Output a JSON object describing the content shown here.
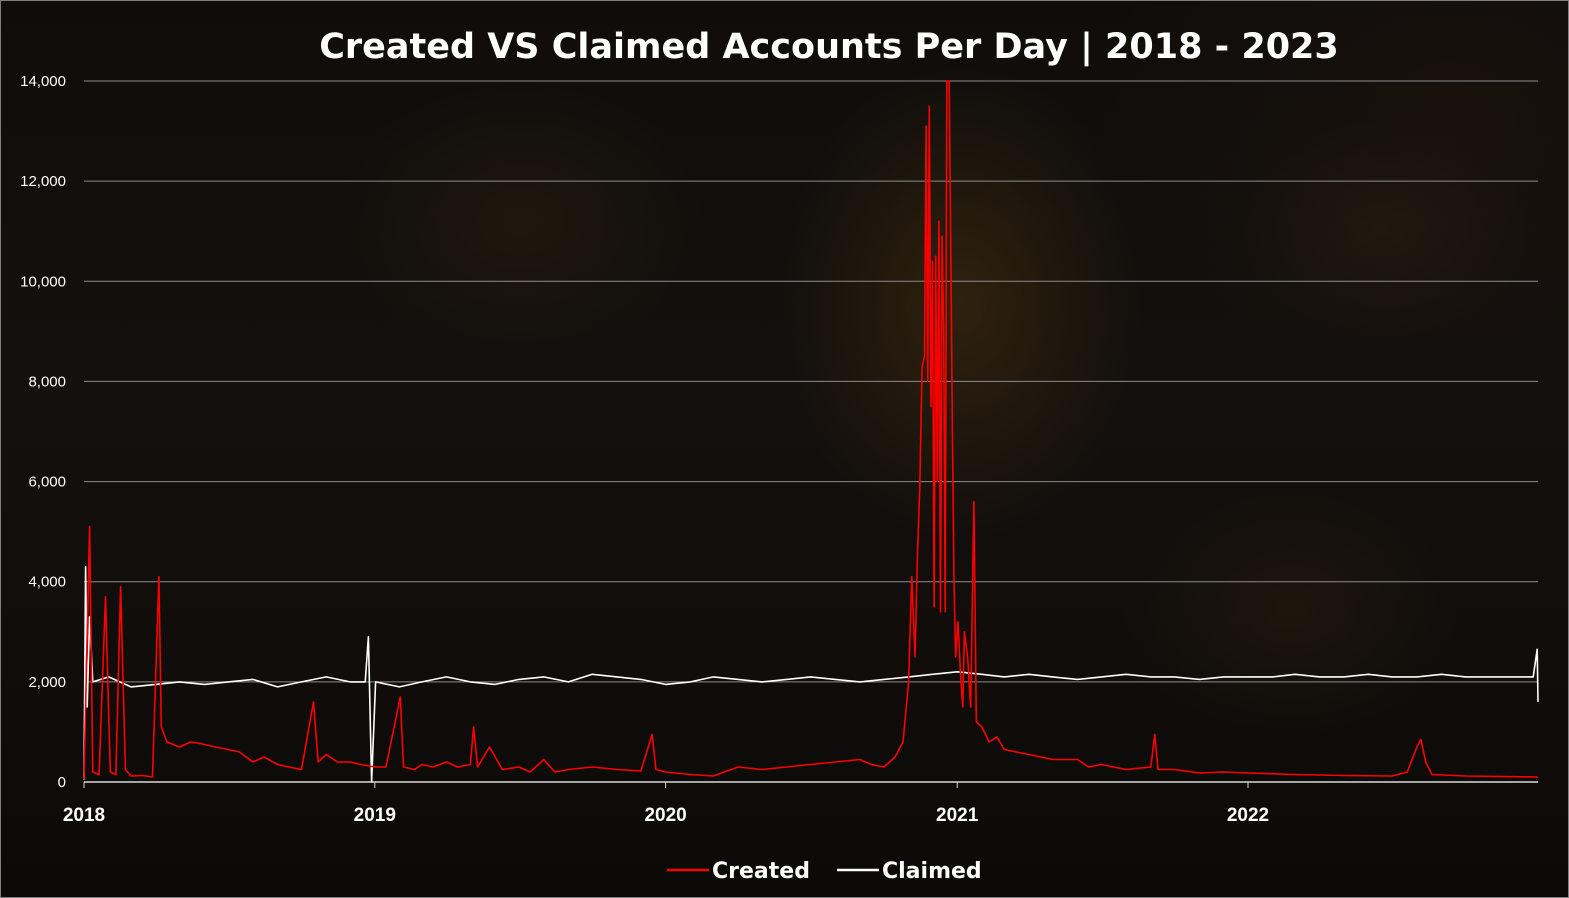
{
  "chart_data": {
    "type": "line",
    "title": "Created VS Claimed Accounts Per Day | 2018 - 2023",
    "xlabel": "",
    "ylabel": "",
    "x_range": [
      "2018-01-01",
      "2022-12-31"
    ],
    "ylim": [
      0,
      14000
    ],
    "y_ticks": [
      "0",
      "2,000",
      "4,000",
      "6,000",
      "8,000",
      "10,000",
      "12,000",
      "14,000"
    ],
    "x_ticks": [
      "2018",
      "2019",
      "2020",
      "2021",
      "2022"
    ],
    "grid": true,
    "legend": "bottom",
    "series": [
      {
        "name": "Created",
        "color": "#ff0000",
        "points": [
          [
            "2018-01-01",
            60
          ],
          [
            "2018-01-08",
            5100
          ],
          [
            "2018-01-12",
            200
          ],
          [
            "2018-01-20",
            150
          ],
          [
            "2018-01-28",
            3700
          ],
          [
            "2018-02-03",
            200
          ],
          [
            "2018-02-10",
            150
          ],
          [
            "2018-02-16",
            3900
          ],
          [
            "2018-02-22",
            250
          ],
          [
            "2018-03-01",
            120
          ],
          [
            "2018-03-15",
            130
          ],
          [
            "2018-03-28",
            100
          ],
          [
            "2018-04-05",
            4100
          ],
          [
            "2018-04-08",
            1100
          ],
          [
            "2018-04-15",
            800
          ],
          [
            "2018-05-01",
            700
          ],
          [
            "2018-05-15",
            800
          ],
          [
            "2018-06-01",
            750
          ],
          [
            "2018-06-15",
            700
          ],
          [
            "2018-07-01",
            650
          ],
          [
            "2018-07-15",
            600
          ],
          [
            "2018-08-01",
            400
          ],
          [
            "2018-08-15",
            500
          ],
          [
            "2018-09-01",
            350
          ],
          [
            "2018-09-15",
            300
          ],
          [
            "2018-10-01",
            250
          ],
          [
            "2018-10-16",
            1600
          ],
          [
            "2018-10-22",
            400
          ],
          [
            "2018-11-01",
            550
          ],
          [
            "2018-11-15",
            400
          ],
          [
            "2018-12-01",
            400
          ],
          [
            "2018-12-15",
            350
          ],
          [
            "2019-01-01",
            300
          ],
          [
            "2019-01-15",
            300
          ],
          [
            "2019-02-02",
            1700
          ],
          [
            "2019-02-06",
            300
          ],
          [
            "2019-02-20",
            250
          ],
          [
            "2019-03-01",
            350
          ],
          [
            "2019-03-15",
            300
          ],
          [
            "2019-04-01",
            400
          ],
          [
            "2019-04-15",
            300
          ],
          [
            "2019-05-01",
            350
          ],
          [
            "2019-05-05",
            1100
          ],
          [
            "2019-05-10",
            300
          ],
          [
            "2019-05-25",
            700
          ],
          [
            "2019-06-10",
            250
          ],
          [
            "2019-07-01",
            300
          ],
          [
            "2019-07-15",
            200
          ],
          [
            "2019-08-01",
            450
          ],
          [
            "2019-08-15",
            200
          ],
          [
            "2019-09-01",
            250
          ],
          [
            "2019-10-01",
            300
          ],
          [
            "2019-11-01",
            250
          ],
          [
            "2019-12-01",
            220
          ],
          [
            "2019-12-15",
            950
          ],
          [
            "2019-12-20",
            250
          ],
          [
            "2020-01-01",
            200
          ],
          [
            "2020-02-01",
            150
          ],
          [
            "2020-03-01",
            120
          ],
          [
            "2020-04-01",
            300
          ],
          [
            "2020-05-01",
            250
          ],
          [
            "2020-06-01",
            300
          ],
          [
            "2020-07-01",
            350
          ],
          [
            "2020-08-01",
            400
          ],
          [
            "2020-09-01",
            450
          ],
          [
            "2020-09-15",
            350
          ],
          [
            "2020-10-01",
            300
          ],
          [
            "2020-10-15",
            500
          ],
          [
            "2020-10-25",
            800
          ],
          [
            "2020-11-01",
            2000
          ],
          [
            "2020-11-05",
            4100
          ],
          [
            "2020-11-09",
            2500
          ],
          [
            "2020-11-12",
            4500
          ],
          [
            "2020-11-15",
            5900
          ],
          [
            "2020-11-18",
            8300
          ],
          [
            "2020-11-21",
            8500
          ],
          [
            "2020-11-23",
            13100
          ],
          [
            "2020-11-25",
            8000
          ],
          [
            "2020-11-27",
            13500
          ],
          [
            "2020-11-29",
            7500
          ],
          [
            "2020-12-01",
            10400
          ],
          [
            "2020-12-03",
            3500
          ],
          [
            "2020-12-05",
            10500
          ],
          [
            "2020-12-07",
            6000
          ],
          [
            "2020-12-09",
            11200
          ],
          [
            "2020-12-11",
            3400
          ],
          [
            "2020-12-13",
            10900
          ],
          [
            "2020-12-15",
            9000
          ],
          [
            "2020-12-17",
            3400
          ],
          [
            "2020-12-19",
            14000
          ],
          [
            "2020-12-22",
            14000
          ],
          [
            "2020-12-24",
            10600
          ],
          [
            "2020-12-26",
            7000
          ],
          [
            "2020-12-28",
            4000
          ],
          [
            "2020-12-30",
            2500
          ],
          [
            "2021-01-02",
            3200
          ],
          [
            "2021-01-05",
            2200
          ],
          [
            "2021-01-08",
            1500
          ],
          [
            "2021-01-10",
            3000
          ],
          [
            "2021-01-14",
            2500
          ],
          [
            "2021-01-18",
            1500
          ],
          [
            "2021-01-22",
            5600
          ],
          [
            "2021-01-25",
            1200
          ],
          [
            "2021-02-01",
            1100
          ],
          [
            "2021-02-10",
            800
          ],
          [
            "2021-02-20",
            900
          ],
          [
            "2021-03-01",
            650
          ],
          [
            "2021-04-01",
            550
          ],
          [
            "2021-05-01",
            450
          ],
          [
            "2021-06-01",
            450
          ],
          [
            "2021-06-15",
            300
          ],
          [
            "2021-07-01",
            350
          ],
          [
            "2021-08-01",
            250
          ],
          [
            "2021-09-01",
            300
          ],
          [
            "2021-09-06",
            950
          ],
          [
            "2021-09-10",
            250
          ],
          [
            "2021-10-01",
            250
          ],
          [
            "2021-11-01",
            180
          ],
          [
            "2021-12-01",
            200
          ],
          [
            "2022-01-01",
            180
          ],
          [
            "2022-03-01",
            150
          ],
          [
            "2022-05-01",
            130
          ],
          [
            "2022-07-01",
            120
          ],
          [
            "2022-07-20",
            200
          ],
          [
            "2022-08-01",
            700
          ],
          [
            "2022-08-06",
            850
          ],
          [
            "2022-08-12",
            400
          ],
          [
            "2022-08-20",
            150
          ],
          [
            "2022-10-01",
            120
          ],
          [
            "2022-12-31",
            100
          ]
        ]
      },
      {
        "name": "Claimed",
        "color": "#ffffff",
        "points": [
          [
            "2018-01-01",
            50
          ],
          [
            "2018-01-03",
            4300
          ],
          [
            "2018-01-05",
            1500
          ],
          [
            "2018-01-08",
            3300
          ],
          [
            "2018-01-12",
            2000
          ],
          [
            "2018-02-01",
            2100
          ],
          [
            "2018-03-01",
            1900
          ],
          [
            "2018-04-01",
            1950
          ],
          [
            "2018-05-01",
            2000
          ],
          [
            "2018-06-01",
            1950
          ],
          [
            "2018-07-01",
            2000
          ],
          [
            "2018-08-01",
            2050
          ],
          [
            "2018-09-01",
            1900
          ],
          [
            "2018-10-01",
            2000
          ],
          [
            "2018-11-01",
            2100
          ],
          [
            "2018-12-01",
            2000
          ],
          [
            "2018-12-20",
            2000
          ],
          [
            "2018-12-24",
            2900
          ],
          [
            "2018-12-28",
            0
          ],
          [
            "2019-01-02",
            2000
          ],
          [
            "2019-02-01",
            1900
          ],
          [
            "2019-03-01",
            2000
          ],
          [
            "2019-04-01",
            2100
          ],
          [
            "2019-05-01",
            2000
          ],
          [
            "2019-06-01",
            1950
          ],
          [
            "2019-07-01",
            2050
          ],
          [
            "2019-08-01",
            2100
          ],
          [
            "2019-09-01",
            2000
          ],
          [
            "2019-10-01",
            2150
          ],
          [
            "2019-11-01",
            2100
          ],
          [
            "2019-12-01",
            2050
          ],
          [
            "2020-01-01",
            1950
          ],
          [
            "2020-02-01",
            2000
          ],
          [
            "2020-03-01",
            2100
          ],
          [
            "2020-04-01",
            2050
          ],
          [
            "2020-05-01",
            2000
          ],
          [
            "2020-06-01",
            2050
          ],
          [
            "2020-07-01",
            2100
          ],
          [
            "2020-08-01",
            2050
          ],
          [
            "2020-09-01",
            2000
          ],
          [
            "2020-10-01",
            2050
          ],
          [
            "2020-11-01",
            2100
          ],
          [
            "2020-12-01",
            2150
          ],
          [
            "2021-01-01",
            2200
          ],
          [
            "2021-02-01",
            2150
          ],
          [
            "2021-03-01",
            2100
          ],
          [
            "2021-04-01",
            2150
          ],
          [
            "2021-05-01",
            2100
          ],
          [
            "2021-06-01",
            2050
          ],
          [
            "2021-07-01",
            2100
          ],
          [
            "2021-08-01",
            2150
          ],
          [
            "2021-09-01",
            2100
          ],
          [
            "2021-10-01",
            2100
          ],
          [
            "2021-11-01",
            2050
          ],
          [
            "2021-12-01",
            2100
          ],
          [
            "2022-01-01",
            2100
          ],
          [
            "2022-02-01",
            2100
          ],
          [
            "2022-03-01",
            2150
          ],
          [
            "2022-04-01",
            2100
          ],
          [
            "2022-05-01",
            2100
          ],
          [
            "2022-06-01",
            2150
          ],
          [
            "2022-07-01",
            2100
          ],
          [
            "2022-08-01",
            2100
          ],
          [
            "2022-09-01",
            2150
          ],
          [
            "2022-10-01",
            2100
          ],
          [
            "2022-11-01",
            2100
          ],
          [
            "2022-12-25",
            2100
          ],
          [
            "2022-12-30",
            2650
          ],
          [
            "2022-12-31",
            1600
          ]
        ]
      }
    ]
  }
}
